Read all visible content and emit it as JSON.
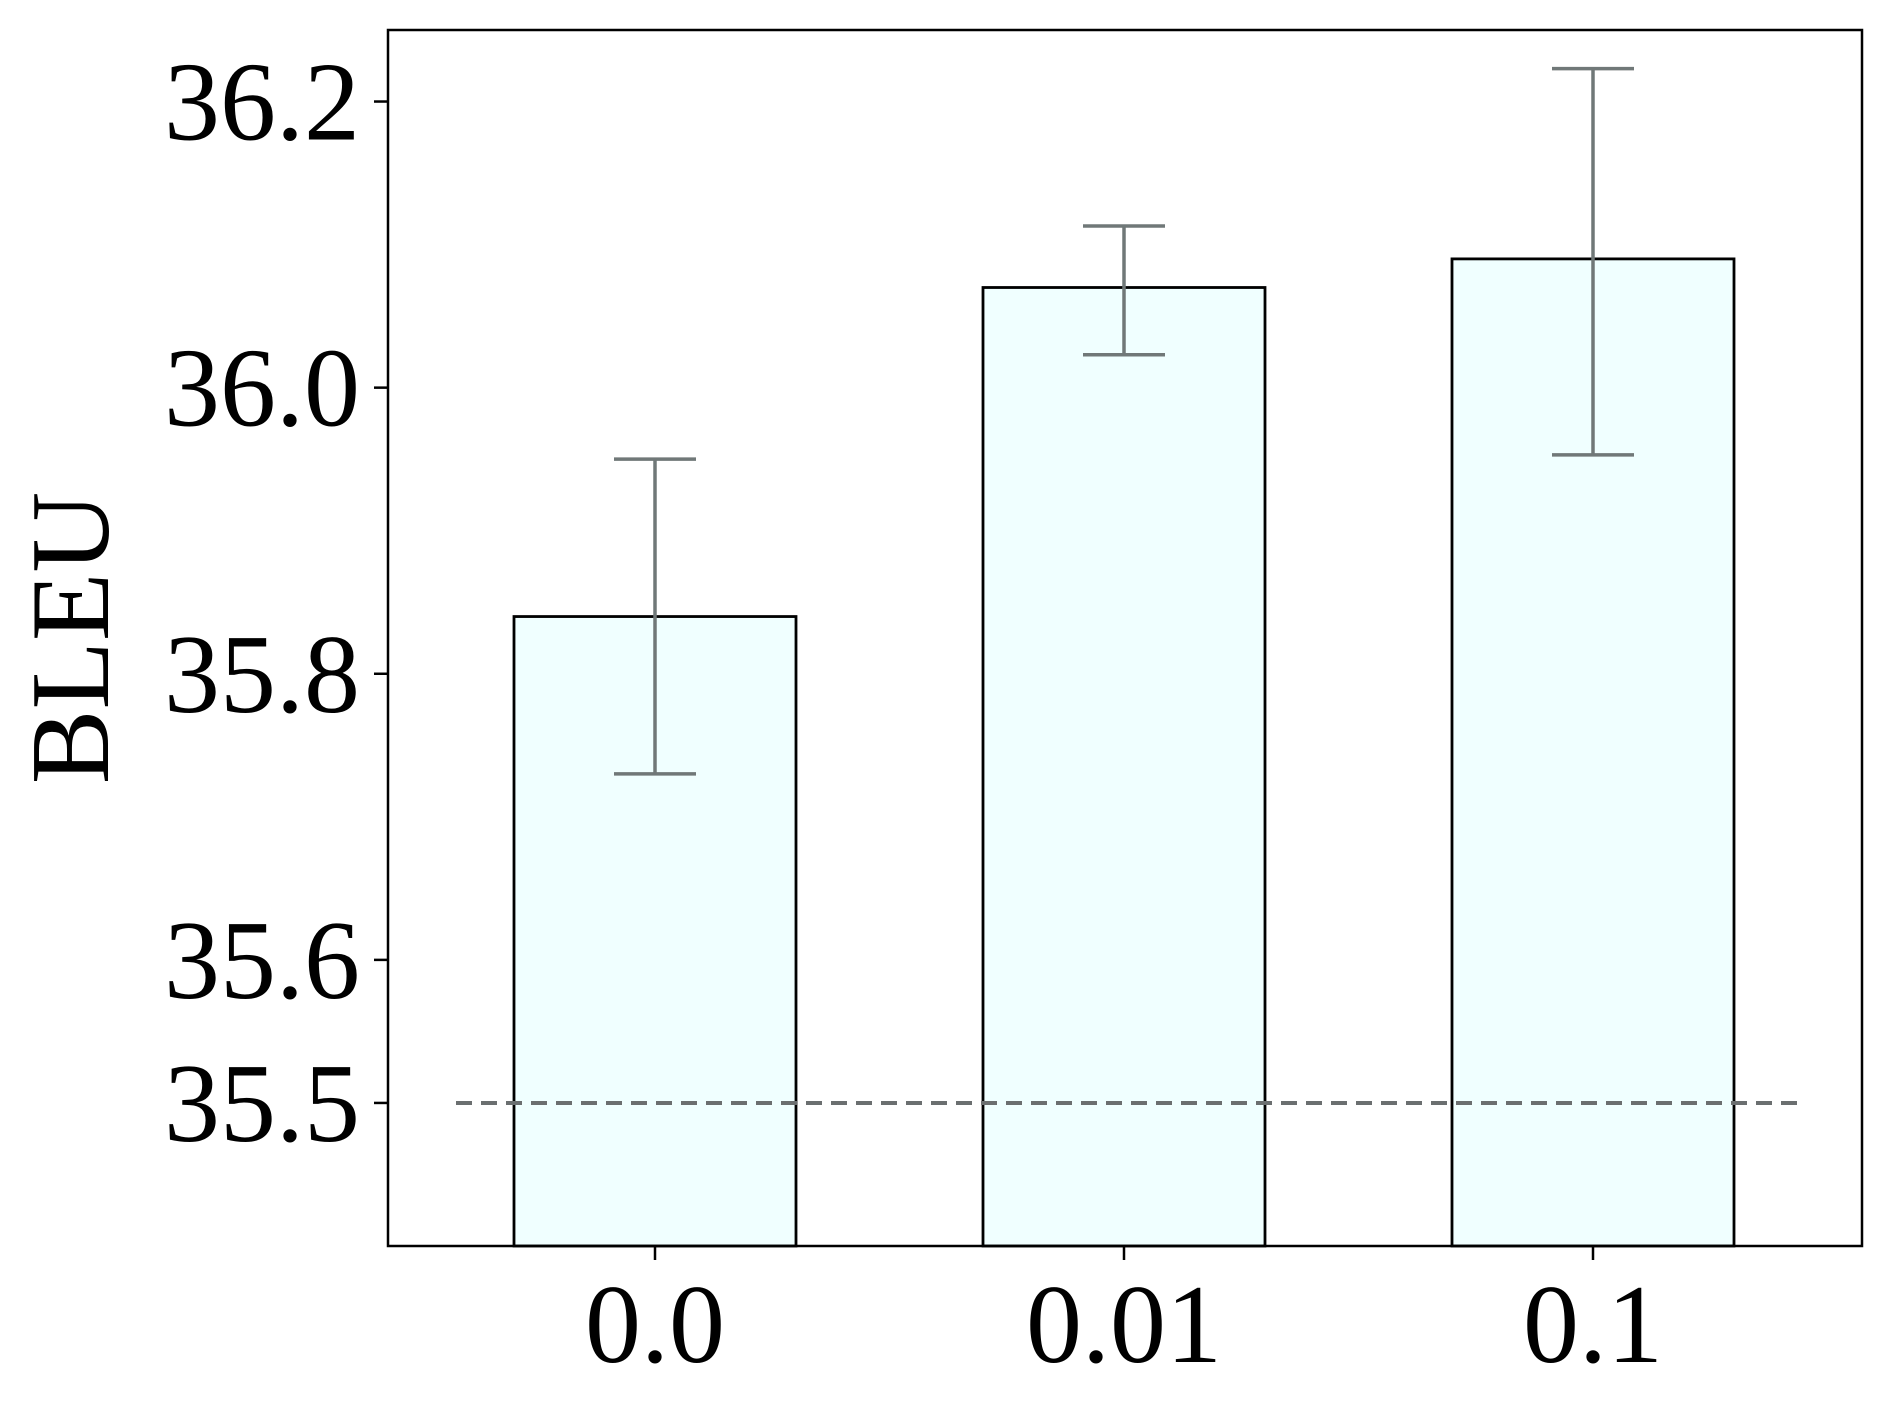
{
  "chart_data": {
    "type": "bar",
    "title": "",
    "xlabel": "",
    "ylabel": "BLEU",
    "categories": [
      "0.0",
      "0.01",
      "0.1"
    ],
    "values": [
      35.84,
      36.07,
      36.09
    ],
    "error_bars": [
      {
        "low": 35.73,
        "high": 35.95
      },
      {
        "low": 36.023,
        "high": 36.113
      },
      {
        "low": 35.953,
        "high": 36.223
      }
    ],
    "ylim": [
      35.4,
      36.25
    ],
    "yticks": [
      35.5,
      35.6,
      35.8,
      36.0,
      36.2
    ],
    "ytick_labels": [
      "35.5",
      "35.6",
      "35.8",
      "36.0",
      "36.2"
    ],
    "reference_line": {
      "y": 35.5,
      "style": "dashed"
    },
    "grid": false,
    "legend": "none",
    "colors": {
      "bar_fill": "#f0ffff",
      "bar_edge": "#000000",
      "error_bar": "#707878",
      "reference_line": "#6b6f70",
      "axes": "#000000"
    }
  }
}
